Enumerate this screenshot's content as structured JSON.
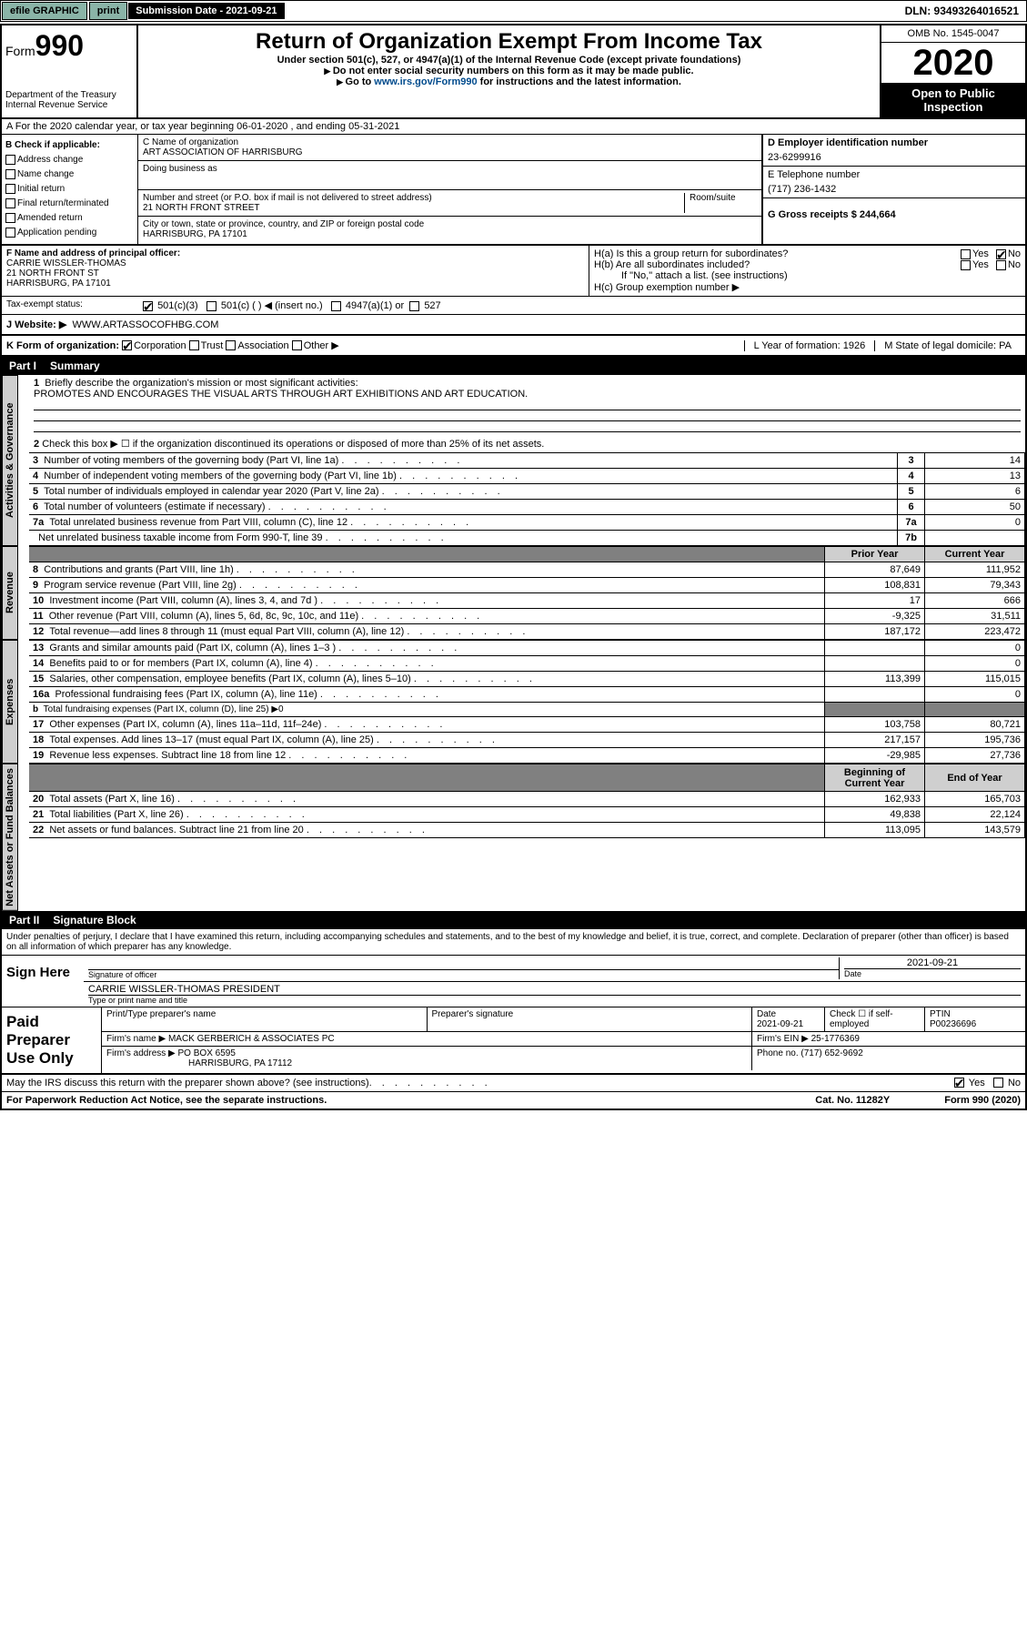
{
  "topbar": {
    "efile": "efile GRAPHIC",
    "print": "print",
    "subLabel": "Submission Date - 2021-09-21",
    "dln": "DLN: 93493264016521"
  },
  "header": {
    "formWord": "Form",
    "formNum": "990",
    "dept": "Department of the Treasury\nInternal Revenue Service",
    "title": "Return of Organization Exempt From Income Tax",
    "sub": "Under section 501(c), 527, or 4947(a)(1) of the Internal Revenue Code (except private foundations)",
    "arrow1": "Do not enter social security numbers on this form as it may be made public.",
    "arrow2": "Go to www.irs.gov/Form990 for instructions and the latest information.",
    "link": "www.irs.gov/Form990",
    "omb": "OMB No. 1545-0047",
    "year": "2020",
    "open": "Open to Public Inspection"
  },
  "sectionA": "A For the 2020 calendar year, or tax year beginning 06-01-2020    , and ending 05-31-2021",
  "colB": {
    "title": "B Check if applicable:",
    "items": [
      "Address change",
      "Name change",
      "Initial return",
      "Final return/terminated",
      "Amended return",
      "Application pending"
    ]
  },
  "colC": {
    "nameLabel": "C Name of organization",
    "name": "ART ASSOCIATION OF HARRISBURG",
    "dba": "Doing business as",
    "addrLabel": "Number and street (or P.O. box if mail is not delivered to street address)",
    "room": "Room/suite",
    "addr": "21 NORTH FRONT STREET",
    "cityLabel": "City or town, state or province, country, and ZIP or foreign postal code",
    "city": "HARRISBURG, PA  17101"
  },
  "colD": {
    "dLabel": "D Employer identification number",
    "ein": "23-6299916",
    "eLabel": "E Telephone number",
    "phone": "(717) 236-1432",
    "gLabel": "G Gross receipts $ 244,664"
  },
  "blockF": {
    "fLabel": "F  Name and address of principal officer:",
    "fName": "CARRIE WISSLER-THOMAS",
    "fAddr1": "21 NORTH FRONT ST",
    "fAddr2": "HARRISBURG, PA  17101",
    "ha": "H(a)  Is this a group return for subordinates?",
    "hb": "H(b)  Are all subordinates included?",
    "hbNote": "If \"No,\" attach a list. (see instructions)",
    "hc": "H(c)  Group exemption number ▶",
    "yes": "Yes",
    "no": "No"
  },
  "taxExempt": {
    "label": "Tax-exempt status:",
    "c3": "501(c)(3)",
    "cOther": "501(c) (  ) ◀ (insert no.)",
    "a1": "4947(a)(1) or",
    "s527": "527"
  },
  "website": {
    "label": "J Website: ▶",
    "value": "WWW.ARTASSOCOFHBG.COM"
  },
  "kRow": {
    "label": "K Form of organization:",
    "corp": "Corporation",
    "trust": "Trust",
    "assoc": "Association",
    "other": "Other ▶",
    "lLabel": "L Year of formation: 1926",
    "mLabel": "M State of legal domicile: PA"
  },
  "partI": {
    "header": "Part I",
    "title": "Summary",
    "q1label": "1",
    "q1": "Briefly describe the organization's mission or most significant activities:",
    "mission": "PROMOTES AND ENCOURAGES THE VISUAL ARTS THROUGH ART EXHIBITIONS AND ART EDUCATION.",
    "q2": "Check this box ▶ ☐  if the organization discontinued its operations or disposed of more than 25% of its net assets.",
    "rows_governance": [
      {
        "n": "3",
        "d": "Number of voting members of the governing body (Part VI, line 1a)",
        "k": "3",
        "v": "14"
      },
      {
        "n": "4",
        "d": "Number of independent voting members of the governing body (Part VI, line 1b)",
        "k": "4",
        "v": "13"
      },
      {
        "n": "5",
        "d": "Total number of individuals employed in calendar year 2020 (Part V, line 2a)",
        "k": "5",
        "v": "6"
      },
      {
        "n": "6",
        "d": "Total number of volunteers (estimate if necessary)",
        "k": "6",
        "v": "50"
      },
      {
        "n": "7a",
        "d": "Total unrelated business revenue from Part VIII, column (C), line 12",
        "k": "7a",
        "v": "0"
      },
      {
        "n": "",
        "d": "Net unrelated business taxable income from Form 990-T, line 39",
        "k": "7b",
        "v": ""
      }
    ],
    "col_prior": "Prior Year",
    "col_current": "Current Year",
    "rows_revenue": [
      {
        "n": "8",
        "d": "Contributions and grants (Part VIII, line 1h)",
        "p": "87,649",
        "c": "111,952"
      },
      {
        "n": "9",
        "d": "Program service revenue (Part VIII, line 2g)",
        "p": "108,831",
        "c": "79,343"
      },
      {
        "n": "10",
        "d": "Investment income (Part VIII, column (A), lines 3, 4, and 7d )",
        "p": "17",
        "c": "666"
      },
      {
        "n": "11",
        "d": "Other revenue (Part VIII, column (A), lines 5, 6d, 8c, 9c, 10c, and 11e)",
        "p": "-9,325",
        "c": "31,511"
      },
      {
        "n": "12",
        "d": "Total revenue—add lines 8 through 11 (must equal Part VIII, column (A), line 12)",
        "p": "187,172",
        "c": "223,472"
      }
    ],
    "rows_expenses": [
      {
        "n": "13",
        "d": "Grants and similar amounts paid (Part IX, column (A), lines 1–3 )",
        "p": "",
        "c": "0"
      },
      {
        "n": "14",
        "d": "Benefits paid to or for members (Part IX, column (A), line 4)",
        "p": "",
        "c": "0"
      },
      {
        "n": "15",
        "d": "Salaries, other compensation, employee benefits (Part IX, column (A), lines 5–10)",
        "p": "113,399",
        "c": "115,015"
      },
      {
        "n": "16a",
        "d": "Professional fundraising fees (Part IX, column (A), line 11e)",
        "p": "",
        "c": "0"
      },
      {
        "n": "b",
        "d": "Total fundraising expenses (Part IX, column (D), line 25) ▶0",
        "p": "—",
        "c": "—"
      },
      {
        "n": "17",
        "d": "Other expenses (Part IX, column (A), lines 11a–11d, 11f–24e)",
        "p": "103,758",
        "c": "80,721"
      },
      {
        "n": "18",
        "d": "Total expenses. Add lines 13–17 (must equal Part IX, column (A), line 25)",
        "p": "217,157",
        "c": "195,736"
      },
      {
        "n": "19",
        "d": "Revenue less expenses. Subtract line 18 from line 12",
        "p": "-29,985",
        "c": "27,736"
      }
    ],
    "col_begin": "Beginning of Current Year",
    "col_end": "End of Year",
    "rows_net": [
      {
        "n": "20",
        "d": "Total assets (Part X, line 16)",
        "p": "162,933",
        "c": "165,703"
      },
      {
        "n": "21",
        "d": "Total liabilities (Part X, line 26)",
        "p": "49,838",
        "c": "22,124"
      },
      {
        "n": "22",
        "d": "Net assets or fund balances. Subtract line 21 from line 20",
        "p": "113,095",
        "c": "143,579"
      }
    ],
    "side_gov": "Activities & Governance",
    "side_rev": "Revenue",
    "side_exp": "Expenses",
    "side_net": "Net Assets or Fund Balances"
  },
  "partII": {
    "header": "Part II",
    "title": "Signature Block",
    "perjury": "Under penalties of perjury, I declare that I have examined this return, including accompanying schedules and statements, and to the best of my knowledge and belief, it is true, correct, and complete. Declaration of preparer (other than officer) is based on all information of which preparer has any knowledge.",
    "signHere": "Sign Here",
    "sigOfficer": "Signature of officer",
    "sigDate": "2021-09-21",
    "dateLabel": "Date",
    "typedName": "CARRIE WISSLER-THOMAS  PRESIDENT",
    "typedLabel": "Type or print name and title",
    "paid": "Paid Preparer Use Only",
    "prepName": "Print/Type preparer's name",
    "prepSig": "Preparer's signature",
    "prepDateLabel": "Date",
    "prepDate": "2021-09-21",
    "checkSelf": "Check ☐ if self-employed",
    "ptinLabel": "PTIN",
    "ptin": "P00236696",
    "firmNameLabel": "Firm's name    ▶",
    "firmName": "MACK GERBERICH & ASSOCIATES PC",
    "firmEinLabel": "Firm's EIN ▶",
    "firmEin": "25-1776369",
    "firmAddrLabel": "Firm's address ▶",
    "firmAddr1": "PO BOX 6595",
    "firmAddr2": "HARRISBURG, PA  17112",
    "phoneLabel": "Phone no.",
    "phone": "(717) 652-9692"
  },
  "footer": {
    "discuss": "May the IRS discuss this return with the preparer shown above? (see instructions)",
    "yes": "Yes",
    "no": "No",
    "paperwork": "For Paperwork Reduction Act Notice, see the separate instructions.",
    "cat": "Cat. No. 11282Y",
    "form": "Form 990 (2020)"
  }
}
